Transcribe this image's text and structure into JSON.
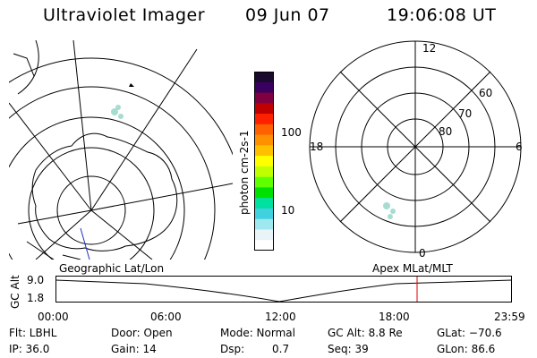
{
  "header": {
    "title": "Ultraviolet Imager",
    "date": "09 Jun 07",
    "time": "19:06:08 UT"
  },
  "colorbar": {
    "label": "photon cm-2s-1",
    "ticks": [
      {
        "value": "100"
      },
      {
        "value": "10"
      }
    ],
    "colors": [
      "#1a0a2e",
      "#3a0060",
      "#800040",
      "#c00000",
      "#ff2000",
      "#ff6000",
      "#ff9000",
      "#ffc000",
      "#ffff00",
      "#c0ff00",
      "#60ff00",
      "#00e000",
      "#00e0a0",
      "#40d0e0",
      "#a0e8f0",
      "#e8f4f8",
      "#ffffff"
    ]
  },
  "polar": {
    "labels": {
      "top": "12",
      "left": "18",
      "right": "6",
      "bottom": "0"
    },
    "rings": [
      "60",
      "70",
      "80"
    ]
  },
  "timeline": {
    "ylabel": "GC Alt",
    "yticks": [
      "9.0",
      "1.8"
    ],
    "left_caption": "Geographic Lat/Lon",
    "right_caption": "Apex MLat/MLT",
    "xticks": [
      "00:00",
      "06:00",
      "12:00",
      "18:00",
      "23:59"
    ],
    "marker_color": "#e00000"
  },
  "footer": {
    "filter": "Flt: LBHL",
    "ip": "IP: 36.0",
    "door": "Door: Open",
    "gain": "Gain: 14",
    "mode": "Mode: Normal",
    "dsp_label": "Dsp:",
    "dsp_value": "0.7",
    "gc_alt": "GC Alt: 8.8 Re",
    "seq": "Seq: 39",
    "glat": "GLat: −70.6",
    "glon": "GLon:  86.6"
  }
}
